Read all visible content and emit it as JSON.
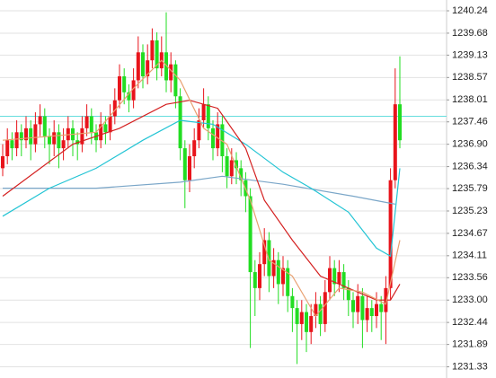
{
  "chart_data": {
    "type": "candlestick",
    "ylim": [
      1231.05,
      1240.51
    ],
    "yticks": [
      1240.24,
      1239.68,
      1239.13,
      1238.57,
      1238.01,
      1237.46,
      {
        "value": 1236.9,
        "label": "1236.90"
      },
      1236.34,
      1235.79,
      1235.23,
      1234.67,
      1234.11,
      1233.56,
      {
        "value": 1233,
        "label": "1233.00"
      },
      1232.44,
      1231.89,
      1231.33
    ],
    "grid": true,
    "up_color": "#e8141b",
    "down_color": "#22dd22",
    "price_line": 1237.6,
    "price_line_color": "#66dddd",
    "open": [
      1236.3,
      1236.6,
      1237.0,
      1236.8,
      1237.2,
      1237.0,
      1237.3,
      1236.9,
      1237.4,
      1237.6,
      1237.1,
      1236.9,
      1237.2,
      1236.8,
      1237.0,
      1237.3,
      1237.0,
      1236.9,
      1237.3,
      1237.6,
      1237.2,
      1237.0,
      1237.4,
      1237.2,
      1237.6,
      1238.0,
      1238.6,
      1238.2,
      1238.0,
      1238.5,
      1239.2,
      1238.6,
      1239.0,
      1239.5,
      1238.8,
      1239.2,
      1238.5,
      1238.9,
      1238.1,
      1236.8,
      1236.0,
      1236.6,
      1237.0,
      1237.5,
      1237.9,
      1237.3,
      1236.8,
      1237.4,
      1236.6,
      1236.1,
      1236.5,
      1236.3,
      1236.0,
      1235.6,
      1233.7,
      1233.3,
      1233.9,
      1234.5,
      1233.6,
      1234.0,
      1233.4,
      1233.8,
      1233.1,
      1232.8,
      1232.4,
      1232.7,
      1232.2,
      1232.6,
      1232.9,
      1232.4,
      1233.2,
      1233.8,
      1233.4,
      1233.7,
      1233.3,
      1233.0,
      1232.7,
      1233.1,
      1232.5,
      1232.8,
      1232.6,
      1232.9,
      1232.7,
      1233.3,
      1236.0,
      1237.9
    ],
    "high": [
      1236.9,
      1237.3,
      1237.2,
      1237.5,
      1237.4,
      1237.6,
      1237.5,
      1237.7,
      1237.9,
      1237.8,
      1237.3,
      1237.5,
      1237.4,
      1237.3,
      1237.6,
      1237.5,
      1237.2,
      1237.6,
      1237.9,
      1237.8,
      1237.4,
      1237.7,
      1237.6,
      1237.9,
      1238.3,
      1238.9,
      1238.8,
      1238.4,
      1238.8,
      1239.6,
      1239.4,
      1239.4,
      1239.8,
      1239.7,
      1239.6,
      1240.2,
      1239.2,
      1239.0,
      1238.3,
      1237.0,
      1236.9,
      1237.3,
      1237.8,
      1238.3,
      1238.1,
      1237.5,
      1237.7,
      1237.6,
      1236.8,
      1236.8,
      1236.7,
      1236.5,
      1236.2,
      1235.8,
      1234.0,
      1234.2,
      1234.8,
      1234.7,
      1234.3,
      1234.2,
      1234.1,
      1234.0,
      1233.3,
      1233.0,
      1233.0,
      1232.9,
      1232.9,
      1233.2,
      1233.1,
      1233.5,
      1234.1,
      1234.0,
      1234.0,
      1233.9,
      1233.5,
      1233.2,
      1233.4,
      1233.3,
      1233.1,
      1233.0,
      1233.2,
      1233.1,
      1233.6,
      1236.3,
      1238.8,
      1239.1
    ],
    "low": [
      1236.1,
      1236.4,
      1236.5,
      1236.6,
      1236.6,
      1236.8,
      1236.5,
      1236.7,
      1237.1,
      1236.8,
      1236.4,
      1236.6,
      1236.3,
      1236.5,
      1236.8,
      1236.6,
      1236.5,
      1236.7,
      1237.1,
      1236.9,
      1236.7,
      1236.8,
      1236.9,
      1237.0,
      1237.4,
      1237.8,
      1237.9,
      1237.7,
      1237.8,
      1238.3,
      1238.3,
      1238.4,
      1238.8,
      1238.5,
      1238.6,
      1238.2,
      1238.2,
      1237.8,
      1236.5,
      1235.3,
      1235.7,
      1236.3,
      1236.8,
      1237.3,
      1237.0,
      1236.5,
      1236.6,
      1236.2,
      1235.8,
      1235.9,
      1235.9,
      1235.6,
      1235.2,
      1231.8,
      1232.6,
      1233.0,
      1233.6,
      1233.2,
      1233.3,
      1232.9,
      1233.1,
      1232.7,
      1232.2,
      1231.4,
      1232.0,
      1231.7,
      1231.9,
      1232.3,
      1232.1,
      1232.2,
      1233.0,
      1233.1,
      1233.2,
      1233.0,
      1232.6,
      1232.3,
      1232.4,
      1231.8,
      1232.2,
      1232.2,
      1232.3,
      1232.0,
      1231.9,
      1233.0,
      1235.8,
      1236.8
    ],
    "close": [
      1236.6,
      1237.0,
      1236.8,
      1237.2,
      1237.0,
      1237.3,
      1236.9,
      1237.4,
      1237.6,
      1237.1,
      1236.9,
      1237.2,
      1236.8,
      1237.0,
      1237.3,
      1237.0,
      1236.9,
      1237.3,
      1237.6,
      1237.2,
      1237.0,
      1237.4,
      1237.2,
      1237.6,
      1238.0,
      1238.6,
      1238.2,
      1238.0,
      1238.5,
      1239.2,
      1238.6,
      1239.0,
      1239.5,
      1238.8,
      1239.2,
      1238.5,
      1238.9,
      1238.1,
      1236.8,
      1236.0,
      1236.6,
      1237.0,
      1237.5,
      1237.9,
      1237.3,
      1236.8,
      1237.4,
      1236.6,
      1236.1,
      1236.5,
      1236.3,
      1236.0,
      1235.6,
      1233.7,
      1233.3,
      1233.9,
      1234.5,
      1233.6,
      1234.0,
      1233.4,
      1233.8,
      1233.1,
      1232.8,
      1232.4,
      1232.7,
      1232.2,
      1232.6,
      1232.9,
      1232.4,
      1233.2,
      1233.8,
      1233.4,
      1233.7,
      1233.3,
      1233.0,
      1232.7,
      1233.1,
      1232.5,
      1232.8,
      1232.6,
      1232.9,
      1232.7,
      1233.3,
      1236.0,
      1237.9,
      1237.0
    ],
    "series": [
      {
        "color": "#7aa6c8",
        "x": [
          0,
          20,
          38,
          47,
          60,
          75,
          84
        ],
        "values": [
          1235.8,
          1235.8,
          1235.95,
          1236.1,
          1235.9,
          1235.6,
          1235.4
        ]
      },
      {
        "color": "#22c4d4",
        "x": [
          0,
          10,
          20,
          30,
          38,
          45,
          52,
          60,
          66,
          74,
          80,
          83,
          85
        ],
        "values": [
          1235.1,
          1235.8,
          1236.3,
          1237.0,
          1237.5,
          1237.4,
          1236.9,
          1236.2,
          1235.8,
          1235.2,
          1234.3,
          1234.1,
          1236.3
        ]
      },
      {
        "color": "#d42020",
        "x": [
          0,
          15,
          25,
          35,
          40,
          46,
          52,
          56,
          62,
          68,
          74,
          80,
          83,
          85
        ],
        "values": [
          1235.6,
          1236.9,
          1237.3,
          1237.9,
          1238.0,
          1237.8,
          1236.8,
          1235.5,
          1234.5,
          1233.6,
          1233.3,
          1233.0,
          1233.0,
          1233.4
        ]
      },
      {
        "color": "#e8a070",
        "x": [
          0,
          10,
          20,
          28,
          34,
          38,
          43,
          48,
          53,
          57,
          62,
          67,
          72,
          77,
          82,
          85
        ],
        "values": [
          1237.0,
          1237.1,
          1237.2,
          1238.3,
          1239.0,
          1238.5,
          1237.3,
          1236.9,
          1235.5,
          1234.0,
          1233.6,
          1232.6,
          1233.3,
          1233.2,
          1232.9,
          1234.5
        ]
      }
    ]
  }
}
